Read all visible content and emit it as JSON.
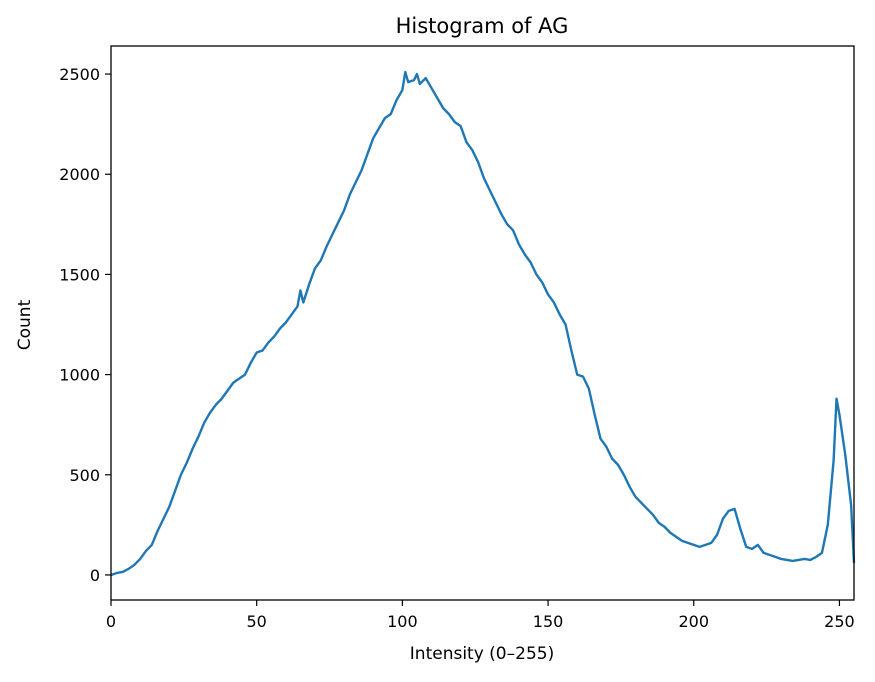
{
  "chart_data": {
    "type": "line",
    "title": "Histogram of AG",
    "xlabel": "Intensity (0–255)",
    "ylabel": "Count",
    "xlim": [
      0,
      255
    ],
    "ylim": [
      -125,
      2640
    ],
    "xticks": [
      0,
      50,
      100,
      150,
      200,
      250
    ],
    "yticks": [
      0,
      500,
      1000,
      1500,
      2000,
      2500
    ],
    "grid": false,
    "series": [
      {
        "color": "#1f77b4",
        "x": [
          0,
          2,
          4,
          6,
          8,
          10,
          12,
          14,
          16,
          18,
          20,
          22,
          24,
          26,
          28,
          30,
          32,
          34,
          36,
          38,
          40,
          42,
          44,
          46,
          48,
          50,
          52,
          54,
          56,
          58,
          60,
          62,
          64,
          65,
          66,
          68,
          70,
          72,
          74,
          76,
          78,
          80,
          82,
          84,
          86,
          88,
          90,
          92,
          94,
          96,
          98,
          100,
          101,
          102,
          104,
          105,
          106,
          108,
          110,
          112,
          114,
          116,
          118,
          120,
          122,
          124,
          126,
          128,
          130,
          132,
          134,
          136,
          138,
          140,
          142,
          144,
          146,
          148,
          150,
          152,
          154,
          156,
          158,
          160,
          162,
          164,
          166,
          168,
          170,
          172,
          174,
          176,
          178,
          180,
          182,
          184,
          186,
          188,
          190,
          192,
          194,
          196,
          198,
          200,
          202,
          204,
          206,
          208,
          210,
          212,
          214,
          216,
          218,
          220,
          222,
          224,
          226,
          228,
          230,
          232,
          234,
          236,
          238,
          240,
          242,
          244,
          246,
          248,
          249,
          250,
          252,
          254,
          255
        ],
        "values": [
          0,
          10,
          15,
          30,
          50,
          80,
          120,
          150,
          220,
          280,
          340,
          420,
          500,
          560,
          630,
          690,
          760,
          810,
          850,
          880,
          920,
          960,
          980,
          1000,
          1060,
          1110,
          1120,
          1160,
          1190,
          1230,
          1260,
          1300,
          1340,
          1420,
          1360,
          1450,
          1530,
          1570,
          1640,
          1700,
          1760,
          1820,
          1900,
          1960,
          2020,
          2100,
          2180,
          2230,
          2280,
          2300,
          2370,
          2420,
          2510,
          2460,
          2470,
          2500,
          2450,
          2480,
          2430,
          2380,
          2330,
          2300,
          2260,
          2240,
          2160,
          2120,
          2060,
          1980,
          1920,
          1860,
          1800,
          1750,
          1720,
          1650,
          1600,
          1560,
          1500,
          1460,
          1400,
          1360,
          1300,
          1250,
          1120,
          1000,
          990,
          930,
          800,
          680,
          640,
          580,
          550,
          500,
          440,
          390,
          360,
          330,
          300,
          260,
          240,
          210,
          190,
          170,
          160,
          150,
          140,
          150,
          160,
          200,
          280,
          320,
          330,
          230,
          140,
          130,
          150,
          110,
          100,
          90,
          80,
          75,
          70,
          75,
          80,
          75,
          90,
          110,
          250,
          570,
          880,
          800,
          600,
          350,
          60
        ]
      }
    ]
  }
}
